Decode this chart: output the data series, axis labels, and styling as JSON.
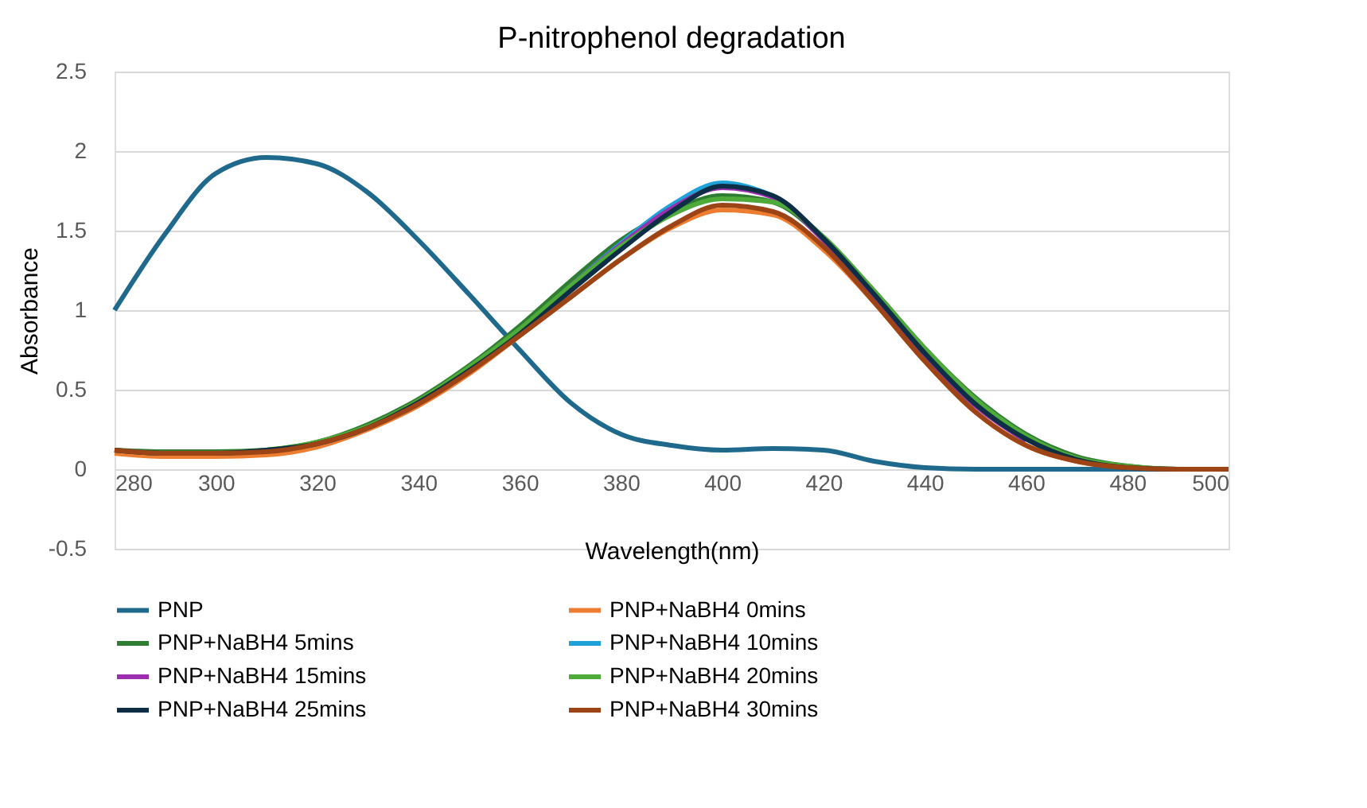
{
  "chart_data": {
    "type": "line",
    "title": "P-nitrophenol degradation",
    "xlabel": "Wavelength(nm)",
    "ylabel": "Absorbance",
    "x": [
      280,
      290,
      300,
      310,
      320,
      330,
      340,
      350,
      360,
      370,
      380,
      390,
      400,
      410,
      420,
      430,
      440,
      450,
      460,
      470,
      480,
      490,
      500
    ],
    "series": [
      {
        "name": "PNP",
        "color": "#1f6a8c",
        "values": [
          1.0,
          1.48,
          1.86,
          1.96,
          1.92,
          1.74,
          1.44,
          1.1,
          0.75,
          0.42,
          0.22,
          0.15,
          0.12,
          0.13,
          0.12,
          0.05,
          0.01,
          0.0,
          0.0,
          0.0,
          0.0,
          0.0,
          0.0
        ]
      },
      {
        "name": "PNP+NaBH4 0mins",
        "color": "#ed7d31",
        "values": [
          0.1,
          0.08,
          0.08,
          0.09,
          0.14,
          0.25,
          0.4,
          0.6,
          0.84,
          1.08,
          1.32,
          1.52,
          1.63,
          1.6,
          1.38,
          1.05,
          0.68,
          0.36,
          0.15,
          0.05,
          0.01,
          null,
          null
        ]
      },
      {
        "name": "PNP+NaBH4 5mins",
        "color": "#2e7d32",
        "values": [
          0.12,
          0.11,
          0.11,
          0.12,
          0.17,
          0.28,
          0.44,
          0.65,
          0.9,
          1.18,
          1.44,
          1.62,
          1.72,
          1.68,
          1.45,
          1.12,
          0.76,
          0.45,
          0.22,
          0.08,
          0.02,
          0.0,
          0.0
        ]
      },
      {
        "name": "PNP+NaBH4 10mins",
        "color": "#1fa2d8",
        "values": [
          null,
          null,
          null,
          null,
          null,
          null,
          null,
          null,
          null,
          1.15,
          1.42,
          1.66,
          1.8,
          1.72,
          null,
          null,
          null,
          null,
          null,
          null,
          null,
          null,
          null
        ]
      },
      {
        "name": "PNP+NaBH4 15mins",
        "color": "#9b2fae",
        "values": [
          null,
          null,
          null,
          null,
          null,
          null,
          null,
          null,
          null,
          1.15,
          1.41,
          1.64,
          1.77,
          1.71,
          1.44,
          1.09,
          0.72,
          0.4,
          0.18,
          null,
          null,
          null,
          null
        ]
      },
      {
        "name": "PNP+NaBH4 20mins",
        "color": "#4eab3a",
        "values": [
          0.12,
          0.1,
          0.1,
          0.12,
          0.17,
          0.27,
          0.43,
          0.64,
          0.88,
          1.15,
          1.4,
          1.6,
          1.7,
          1.68,
          1.46,
          1.12,
          0.76,
          0.44,
          0.21,
          0.07,
          0.02,
          0.0,
          0.0
        ]
      },
      {
        "name": "PNP+NaBH4 25mins",
        "color": "#0d2e45",
        "values": [
          0.12,
          0.1,
          0.1,
          0.12,
          0.16,
          0.26,
          0.42,
          0.62,
          0.85,
          1.12,
          1.38,
          1.62,
          1.78,
          1.72,
          1.45,
          1.1,
          0.73,
          0.41,
          0.19,
          0.06,
          0.01,
          0.0,
          0.0
        ]
      },
      {
        "name": "PNP+NaBH4 30mins",
        "color": "#9c4416",
        "values": [
          0.12,
          0.1,
          0.1,
          0.11,
          0.16,
          0.26,
          0.41,
          0.61,
          0.84,
          1.08,
          1.32,
          1.53,
          1.66,
          1.62,
          1.4,
          1.05,
          0.68,
          0.36,
          0.15,
          0.05,
          0.01,
          0.0,
          0.0
        ]
      }
    ],
    "xlim": [
      280,
      500
    ],
    "xticks": [
      280,
      300,
      320,
      340,
      360,
      380,
      400,
      420,
      440,
      460,
      480,
      500
    ],
    "ylim": [
      -0.5,
      2.5
    ],
    "yticks": [
      -0.5,
      0,
      0.5,
      1,
      1.5,
      2,
      2.5
    ],
    "grid": "y",
    "legend": "bottom",
    "marker": "none",
    "line_style": "solid"
  }
}
